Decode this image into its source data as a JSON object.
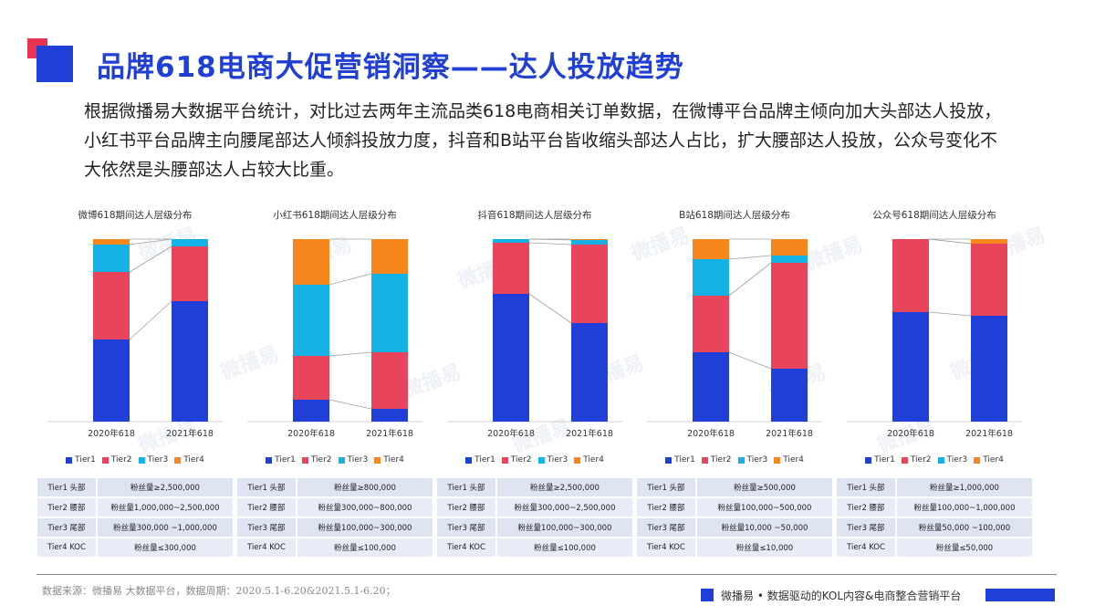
{
  "header": {
    "title": "品牌618电商大促营销洞察——达人投放趋势",
    "summary": "根据微播易大数据平台统计，对比过去两年主流品类618电商相关订单数据，在微博平台品牌主倾向加大头部达人投放，小红书平台品牌主向腰尾部达人倾斜投放力度，抖音和B站平台皆收缩头部达人占比，扩大腰部达人投放，公众号变化不大依然是头腰部达人占较大比重。"
  },
  "watermark": "微播易",
  "colors": {
    "Tier1": "#1f3fd6",
    "Tier2": "#e8455c",
    "Tier3": "#16b2e6",
    "Tier4": "#f7861c",
    "accent": "#1f3fd6",
    "accent_red": "#e8344e"
  },
  "legend_labels": [
    "Tier1",
    "Tier2",
    "Tier3",
    "Tier4"
  ],
  "chart_data": [
    {
      "type": "bar",
      "stacked": true,
      "title": "微博618期间达人层级分布",
      "categories": [
        "2020年618",
        "2021年618"
      ],
      "ylim": [
        0,
        100
      ],
      "series": [
        {
          "name": "Tier1",
          "values": [
            45,
            66
          ]
        },
        {
          "name": "Tier2",
          "values": [
            37,
            30
          ]
        },
        {
          "name": "Tier3",
          "values": [
            15,
            4
          ]
        },
        {
          "name": "Tier4",
          "values": [
            3,
            0
          ]
        }
      ]
    },
    {
      "type": "bar",
      "stacked": true,
      "title": "小红书618期间达人层级分布",
      "categories": [
        "2020年618",
        "2021年618"
      ],
      "ylim": [
        0,
        100
      ],
      "series": [
        {
          "name": "Tier1",
          "values": [
            12,
            7
          ]
        },
        {
          "name": "Tier2",
          "values": [
            24,
            31
          ]
        },
        {
          "name": "Tier3",
          "values": [
            39,
            43
          ]
        },
        {
          "name": "Tier4",
          "values": [
            25,
            19
          ]
        }
      ]
    },
    {
      "type": "bar",
      "stacked": true,
      "title": "抖音618期间达人层级分布",
      "categories": [
        "2020年618",
        "2021年618"
      ],
      "ylim": [
        0,
        100
      ],
      "series": [
        {
          "name": "Tier1",
          "values": [
            70,
            54
          ]
        },
        {
          "name": "Tier2",
          "values": [
            28,
            43
          ]
        },
        {
          "name": "Tier3",
          "values": [
            2,
            2.5
          ]
        },
        {
          "name": "Tier4",
          "values": [
            0,
            0.5
          ]
        }
      ]
    },
    {
      "type": "bar",
      "stacked": true,
      "title": "B站618期间达人层级分布",
      "categories": [
        "2020年618",
        "2021年618"
      ],
      "ylim": [
        0,
        100
      ],
      "series": [
        {
          "name": "Tier1",
          "values": [
            38,
            29
          ]
        },
        {
          "name": "Tier2",
          "values": [
            31,
            58
          ]
        },
        {
          "name": "Tier3",
          "values": [
            20,
            4
          ]
        },
        {
          "name": "Tier4",
          "values": [
            11,
            9
          ]
        }
      ]
    },
    {
      "type": "bar",
      "stacked": true,
      "title": "公众号618期间达人层级分布",
      "categories": [
        "2020年618",
        "2021年618"
      ],
      "ylim": [
        0,
        100
      ],
      "series": [
        {
          "name": "Tier1",
          "values": [
            60,
            58
          ]
        },
        {
          "name": "Tier2",
          "values": [
            40,
            39.5
          ]
        },
        {
          "name": "Tier3",
          "values": [
            0,
            0
          ]
        },
        {
          "name": "Tier4",
          "values": [
            0,
            2.5
          ]
        }
      ]
    }
  ],
  "tier_tables": [
    [
      [
        "Tier1 头部",
        "粉丝量≥2,500,000"
      ],
      [
        "Tier2 腰部",
        "粉丝量1,000,000~2,500,000"
      ],
      [
        "Tier3 尾部",
        "粉丝量300,000 ~1,000,000"
      ],
      [
        "Tier4 KOC",
        "粉丝量≤300,000"
      ]
    ],
    [
      [
        "Tier1 头部",
        "粉丝量≥800,000"
      ],
      [
        "Tier2 腰部",
        "粉丝量300,000~800,000"
      ],
      [
        "Tier3 尾部",
        "粉丝量100,000~300,000"
      ],
      [
        "Tier4 KOC",
        "粉丝量≤100,000"
      ]
    ],
    [
      [
        "Tier1 头部",
        "粉丝量≥2,500,000"
      ],
      [
        "Tier2 腰部",
        "粉丝量300,000~2,500,000"
      ],
      [
        "Tier3 尾部",
        "粉丝量100,000~300,000"
      ],
      [
        "Tier4 KOC",
        "粉丝量≤100,000"
      ]
    ],
    [
      [
        "Tier1 头部",
        "粉丝量≥500,000"
      ],
      [
        "Tier2 腰部",
        "粉丝量100,000~500,000"
      ],
      [
        "Tier3 尾部",
        "粉丝量10,000 ~50,000"
      ],
      [
        "Tier4 KOC",
        "粉丝量≤10,000"
      ]
    ],
    [
      [
        "Tier1 头部",
        "粉丝量≥1,000,000"
      ],
      [
        "Tier2 腰部",
        "粉丝量100,000~1,000,000"
      ],
      [
        "Tier3 尾部",
        "粉丝量50,000 ~100,000"
      ],
      [
        "Tier4 KOC",
        "粉丝量≤50,000"
      ]
    ]
  ],
  "footer": {
    "source": "数据来源：微播易 大数据平台，数据周期：2020.5.1-6.20&2021.5.1-6.20；",
    "tagline": "微播易 • 数据驱动的KOL内容&电商整合营销平台"
  }
}
